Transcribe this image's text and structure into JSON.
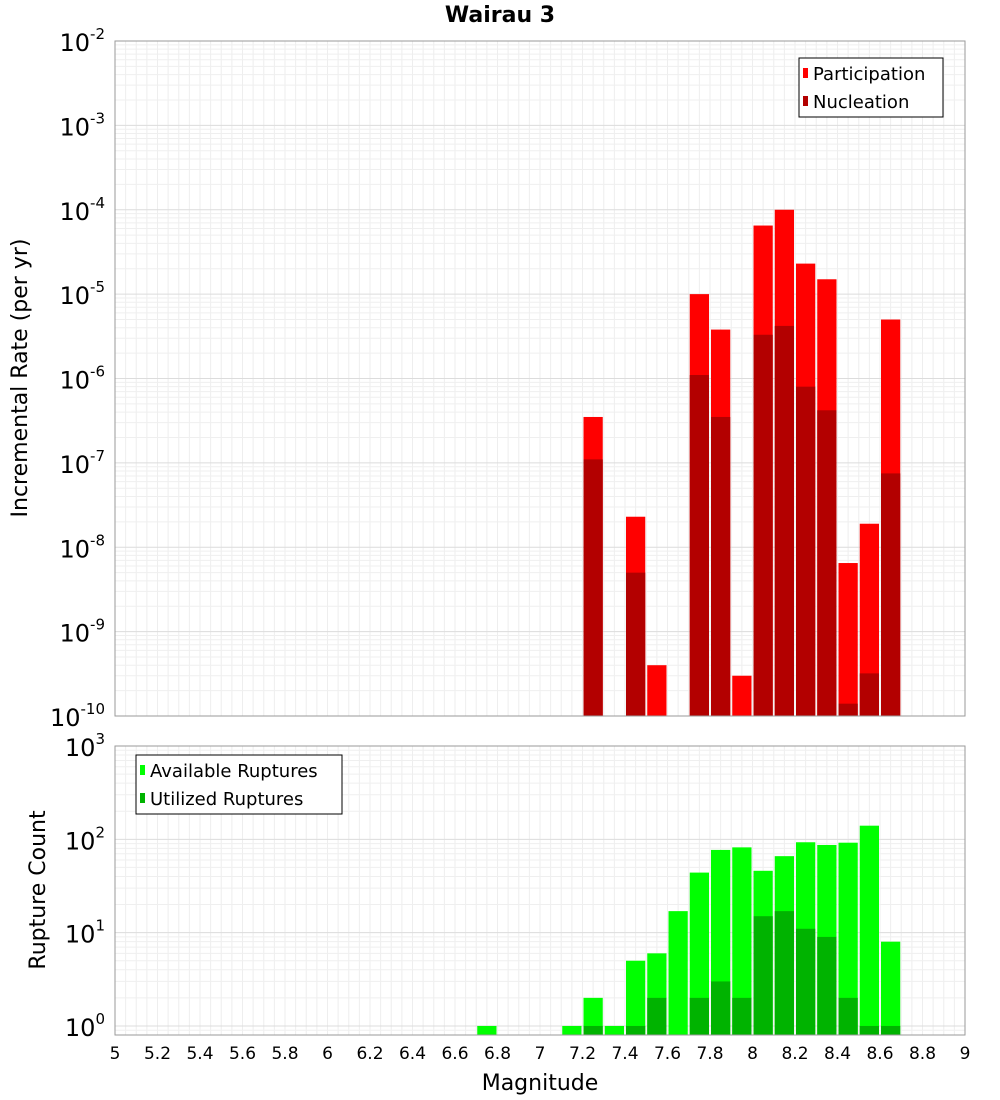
{
  "chart_data": {
    "title": "Wairau 3",
    "xlabel": "Magnitude",
    "xlim": [
      5,
      9
    ],
    "xticks": [
      "5",
      "5.2",
      "5.4",
      "5.6",
      "5.8",
      "6",
      "6.2",
      "6.4",
      "6.6",
      "6.8",
      "7",
      "7.2",
      "7.4",
      "7.6",
      "7.8",
      "8",
      "8.2",
      "8.4",
      "8.6",
      "8.8",
      "9"
    ],
    "panels": [
      {
        "type": "bar",
        "ylabel": "Incremental Rate (per yr)",
        "yscale": "log",
        "ylim": [
          1e-10,
          0.01
        ],
        "ytick_exponents": [
          "-2",
          "-3",
          "-4",
          "-5",
          "-6",
          "-7",
          "-8",
          "-9",
          "-10"
        ],
        "legend": {
          "position": "top-right",
          "items": [
            "Participation",
            "Nucleation"
          ]
        },
        "grid": true,
        "series": [
          {
            "name": "Participation",
            "color": "#ff0000",
            "x": [
              7.25,
              7.45,
              7.55,
              7.75,
              7.85,
              7.95,
              8.05,
              8.15,
              8.25,
              8.35,
              8.45,
              8.55,
              8.65
            ],
            "values": [
              3.5e-07,
              2.3e-08,
              4e-10,
              1e-05,
              3.8e-06,
              3e-10,
              6.5e-05,
              0.0001,
              2.3e-05,
              1.5e-05,
              6.5e-09,
              1.9e-08,
              5e-06
            ]
          },
          {
            "name": "Nucleation",
            "color": "#b30000",
            "x": [
              7.25,
              7.45,
              7.75,
              7.85,
              8.05,
              8.15,
              8.25,
              8.35,
              8.45,
              8.55,
              8.65
            ],
            "values": [
              1.1e-07,
              5e-09,
              1.1e-06,
              3.5e-07,
              3.3e-06,
              4.2e-06,
              8e-07,
              4.2e-07,
              1.4e-10,
              3.2e-10,
              7.5e-08
            ]
          }
        ]
      },
      {
        "type": "bar",
        "ylabel": "Rupture Count",
        "yscale": "log",
        "ylim": [
          0.8,
          1000
        ],
        "ytick_exponents": [
          "3",
          "2",
          "1",
          "0"
        ],
        "legend": {
          "position": "top-left",
          "items": [
            "Available Ruptures",
            "Utilized Ruptures"
          ]
        },
        "grid": true,
        "series": [
          {
            "name": "Available Ruptures",
            "color": "#00ff00",
            "x": [
              6.75,
              7.15,
              7.25,
              7.35,
              7.45,
              7.55,
              7.65,
              7.75,
              7.85,
              7.95,
              8.05,
              8.15,
              8.25,
              8.35,
              8.45,
              8.55,
              8.65
            ],
            "values": [
              1,
              1,
              2,
              1,
              5,
              6,
              17,
              44,
              77,
              82,
              46,
              66,
              93,
              87,
              92,
              140,
              8
            ]
          },
          {
            "name": "Utilized Ruptures",
            "color": "#00b300",
            "x": [
              7.25,
              7.45,
              7.55,
              7.75,
              7.85,
              7.95,
              8.05,
              8.15,
              8.25,
              8.35,
              8.45,
              8.55,
              8.65
            ],
            "values": [
              1,
              1,
              2,
              2,
              3,
              2,
              15,
              17,
              11,
              9,
              2,
              1,
              1
            ]
          }
        ]
      }
    ]
  }
}
